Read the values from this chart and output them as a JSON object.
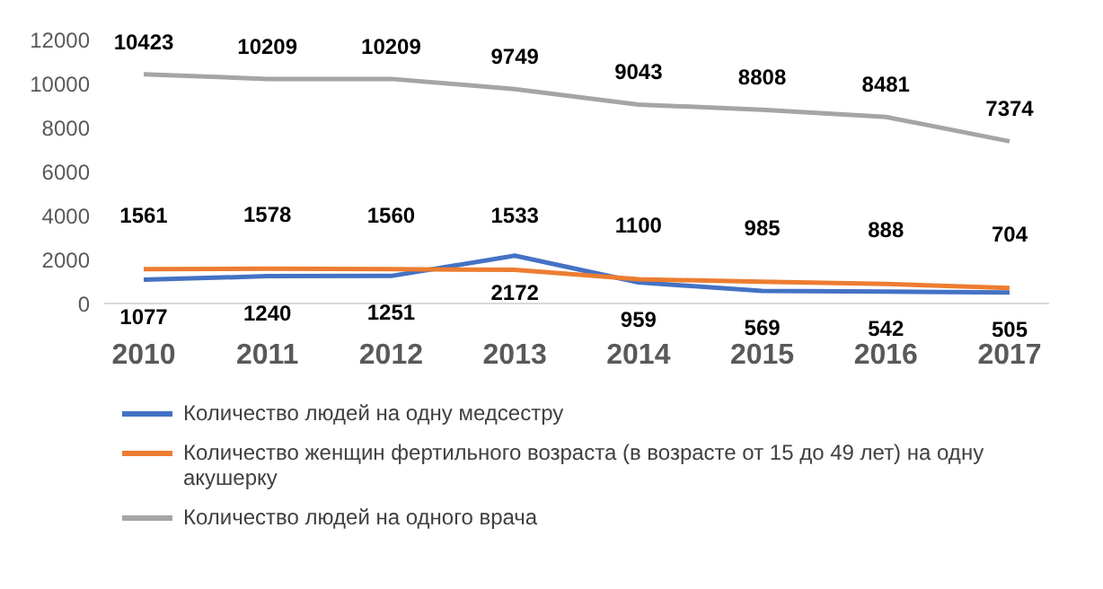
{
  "chart_data": {
    "type": "line",
    "categories": [
      "2010",
      "2011",
      "2012",
      "2013",
      "2014",
      "2015",
      "2016",
      "2017"
    ],
    "series": [
      {
        "name": "Количество людей на одну медсестру",
        "color": "#4472c4",
        "values": [
          1077,
          1240,
          1251,
          2172,
          959,
          569,
          542,
          505
        ]
      },
      {
        "name": "Количество женщин фертильного возраста (в возрасте от 15  до 49 лет) на одну акушерку",
        "color": "#ed7d31",
        "values": [
          1561,
          1578,
          1560,
          1533,
          1100,
          985,
          888,
          704
        ]
      },
      {
        "name": "Количество людей на одного врача",
        "color": "#a5a5a5",
        "values": [
          10423,
          10209,
          10209,
          9749,
          9043,
          8808,
          8481,
          7374
        ]
      }
    ],
    "ylim": [
      0,
      12000
    ],
    "yticks": [
      0,
      2000,
      4000,
      6000,
      8000,
      10000,
      12000
    ],
    "grid": false,
    "legend": "bottom",
    "marker": "none",
    "line_style": "solid",
    "data_labels": true
  }
}
